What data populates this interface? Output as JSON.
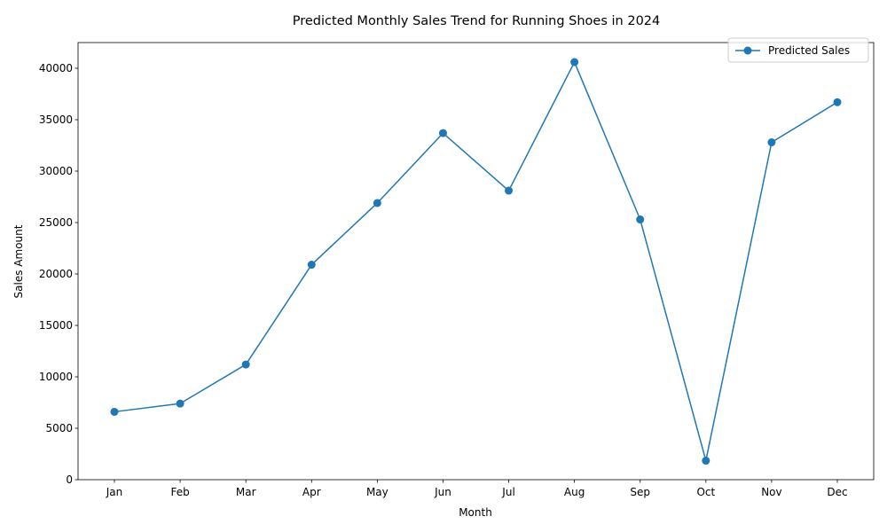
{
  "chart_data": {
    "type": "line",
    "title": "Predicted Monthly Sales Trend for Running Shoes in 2024",
    "xlabel": "Month",
    "ylabel": "Sales Amount",
    "categories": [
      "Jan",
      "Feb",
      "Mar",
      "Apr",
      "May",
      "Jun",
      "Jul",
      "Aug",
      "Sep",
      "Oct",
      "Nov",
      "Dec"
    ],
    "series": [
      {
        "name": "Predicted Sales",
        "color": "#1f77b4",
        "marker": "circle",
        "values": [
          6600,
          7400,
          11200,
          20900,
          26900,
          33700,
          28100,
          40600,
          25300,
          1850,
          32800,
          36700
        ]
      }
    ],
    "ylim": [
      0,
      42500
    ],
    "yticks": [
      0,
      5000,
      10000,
      15000,
      20000,
      25000,
      30000,
      35000,
      40000
    ],
    "grid": false,
    "legend_position": "top-right"
  }
}
